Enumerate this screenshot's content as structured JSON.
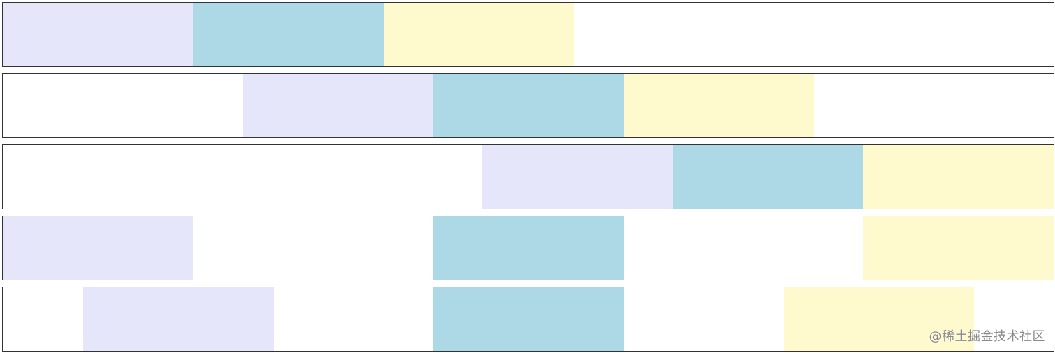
{
  "watermark": "@稀土掘金技术社区"
}
